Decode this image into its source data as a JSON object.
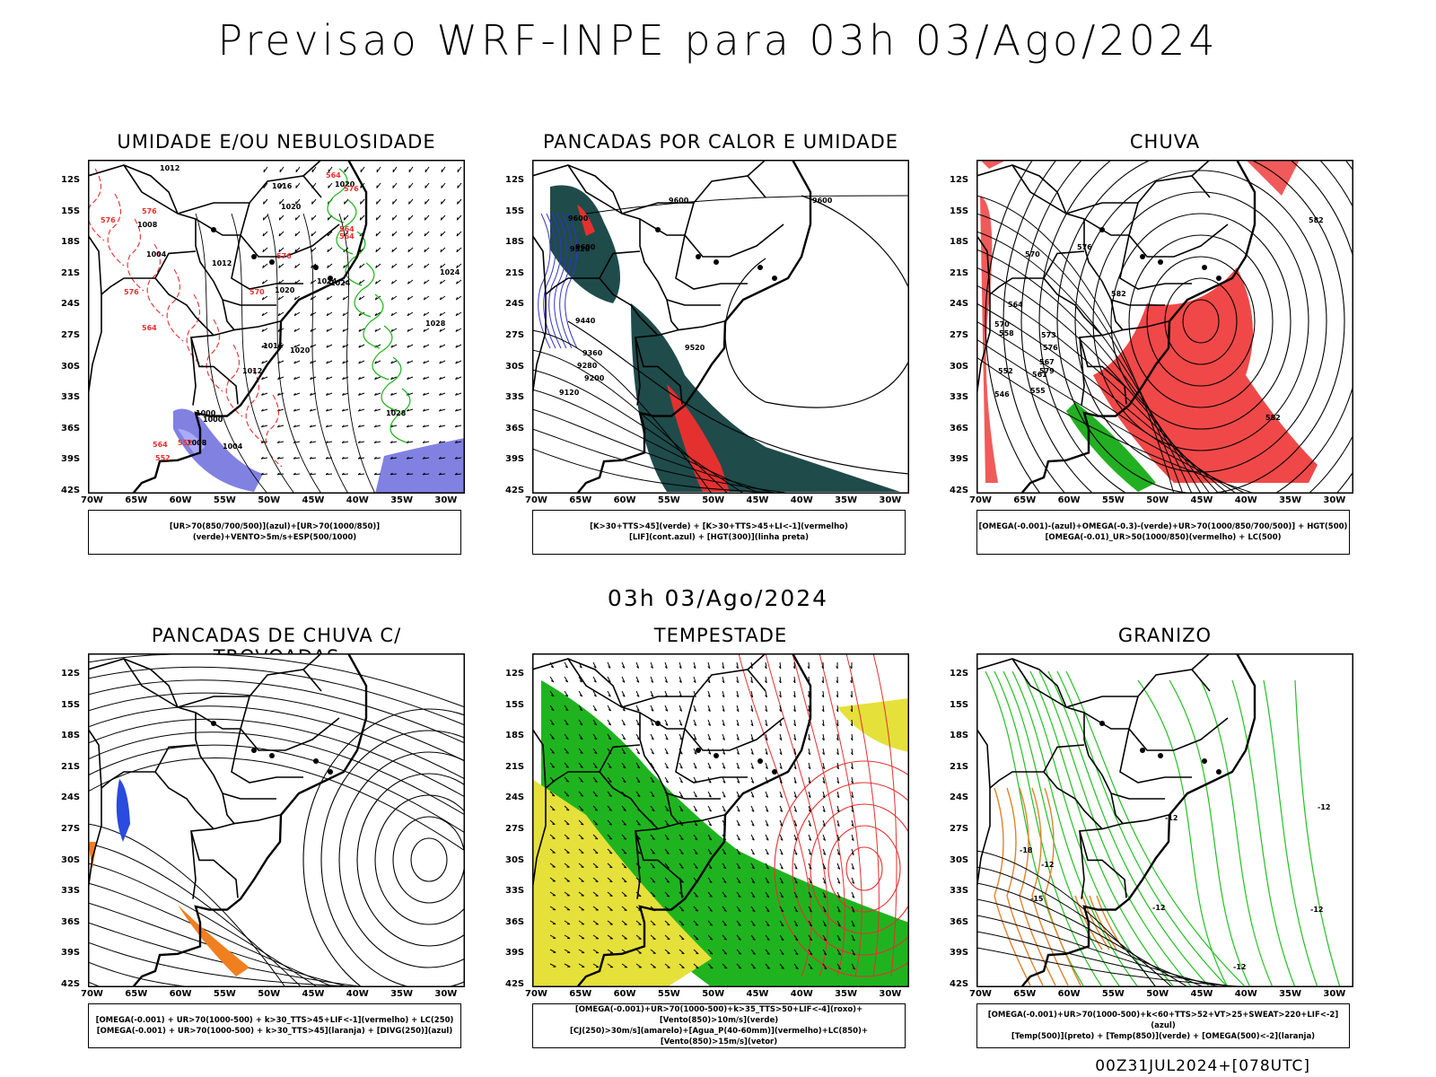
{
  "header": {
    "title": "Previsao WRF-INPE  para 03h 03/Ago/2024"
  },
  "mid_title": "03h 03/Ago/2024",
  "axes": {
    "lat_labels": [
      "12S",
      "15S",
      "18S",
      "21S",
      "24S",
      "27S",
      "30S",
      "33S",
      "36S",
      "39S",
      "42S"
    ],
    "lon_labels": [
      "70W",
      "65W",
      "60W",
      "55W",
      "50W",
      "45W",
      "40W",
      "35W",
      "30W"
    ]
  },
  "panels": [
    {
      "title": "UMIDADE E/OU NEBULOSIDADE",
      "legend": [
        "[UR>70(850/700/500)](azul)+[UR>70(1000/850)](verde)+VENTO>5m/s+ESP(500/1000)"
      ],
      "contour_labels": [
        "1012",
        "1016",
        "1020",
        "1020",
        "1008",
        "1004",
        "1012",
        "1020",
        "1024",
        "1024",
        "1028",
        "1000",
        "1008",
        "1016",
        "1020",
        "1012",
        "1000",
        "1004",
        "1024",
        "1028",
        "576",
        "576",
        "576",
        "576",
        "576",
        "564",
        "564",
        "564",
        "564",
        "564",
        "552",
        "552",
        "570"
      ]
    },
    {
      "title": "PANCADAS POR CALOR E UMIDADE",
      "legend": [
        "[K>30+TTS>45](verde) + [K>30+TTS>45+LI<-1](vermelho)",
        "[LIF](cont.azul) + [HGT(300)](linha preta)"
      ],
      "contour_labels": [
        "9600",
        "9600",
        "9600",
        "9600",
        "9520",
        "9440",
        "9360",
        "9280",
        "9200",
        "9120",
        "9520"
      ]
    },
    {
      "title": "CHUVA",
      "legend": [
        "[OMEGA(-0.001)-(azul)+OMEGA(-0.3)-(verde)+UR>70(1000/850/700/500)] + HGT(500)",
        "[OMEGA(-0.01)_UR>50(1000/850)(vermelho) + LC(500)"
      ],
      "contour_labels": [
        "582",
        "582",
        "576",
        "570",
        "564",
        "558",
        "552",
        "546",
        "570",
        "579",
        "573",
        "576",
        "567",
        "561",
        "555",
        "582"
      ]
    },
    {
      "title": "PANCADAS DE CHUVA C/ TROVOADAS",
      "legend": [
        "[OMEGA(-0.001) + UR>70(1000-500) + k>30_TTS>45+LIF<-1](vermelho) + LC(250)",
        "[OMEGA(-0.001) + UR>70(1000-500) + k>30_TTS>45](laranja) + [DIVG(250)](azul)"
      ],
      "contour_labels": []
    },
    {
      "title": "TEMPESTADE",
      "legend": [
        "[OMEGA(-0.001)+UR>70(1000-500)+k>35_TTS>50+LIF<-4](roxo)+[Vento(850)>10m/s](verde)",
        "[CJ(250)>30m/s](amarelo)+[Agua_P(40-60mm)](vermelho)+LC(850)+[Vento(850)>15m/s](vetor)"
      ],
      "contour_labels": []
    },
    {
      "title": "GRANIZO",
      "legend": [
        "[OMEGA(-0.001)+UR>70(1000-500)+k<60+TTS>52+VT>25+SWEAT>220+LIF<-2](azul)",
        "[Temp(500)](preto) + [Temp(850)](verde) + [OMEGA(500)<-2](laranja)"
      ],
      "contour_labels": [
        "-18",
        "-12",
        "-15",
        "-12",
        "-12",
        "-12",
        "-12",
        "-12"
      ]
    }
  ],
  "footer": "00Z31JUL2024+[078UTC]"
}
